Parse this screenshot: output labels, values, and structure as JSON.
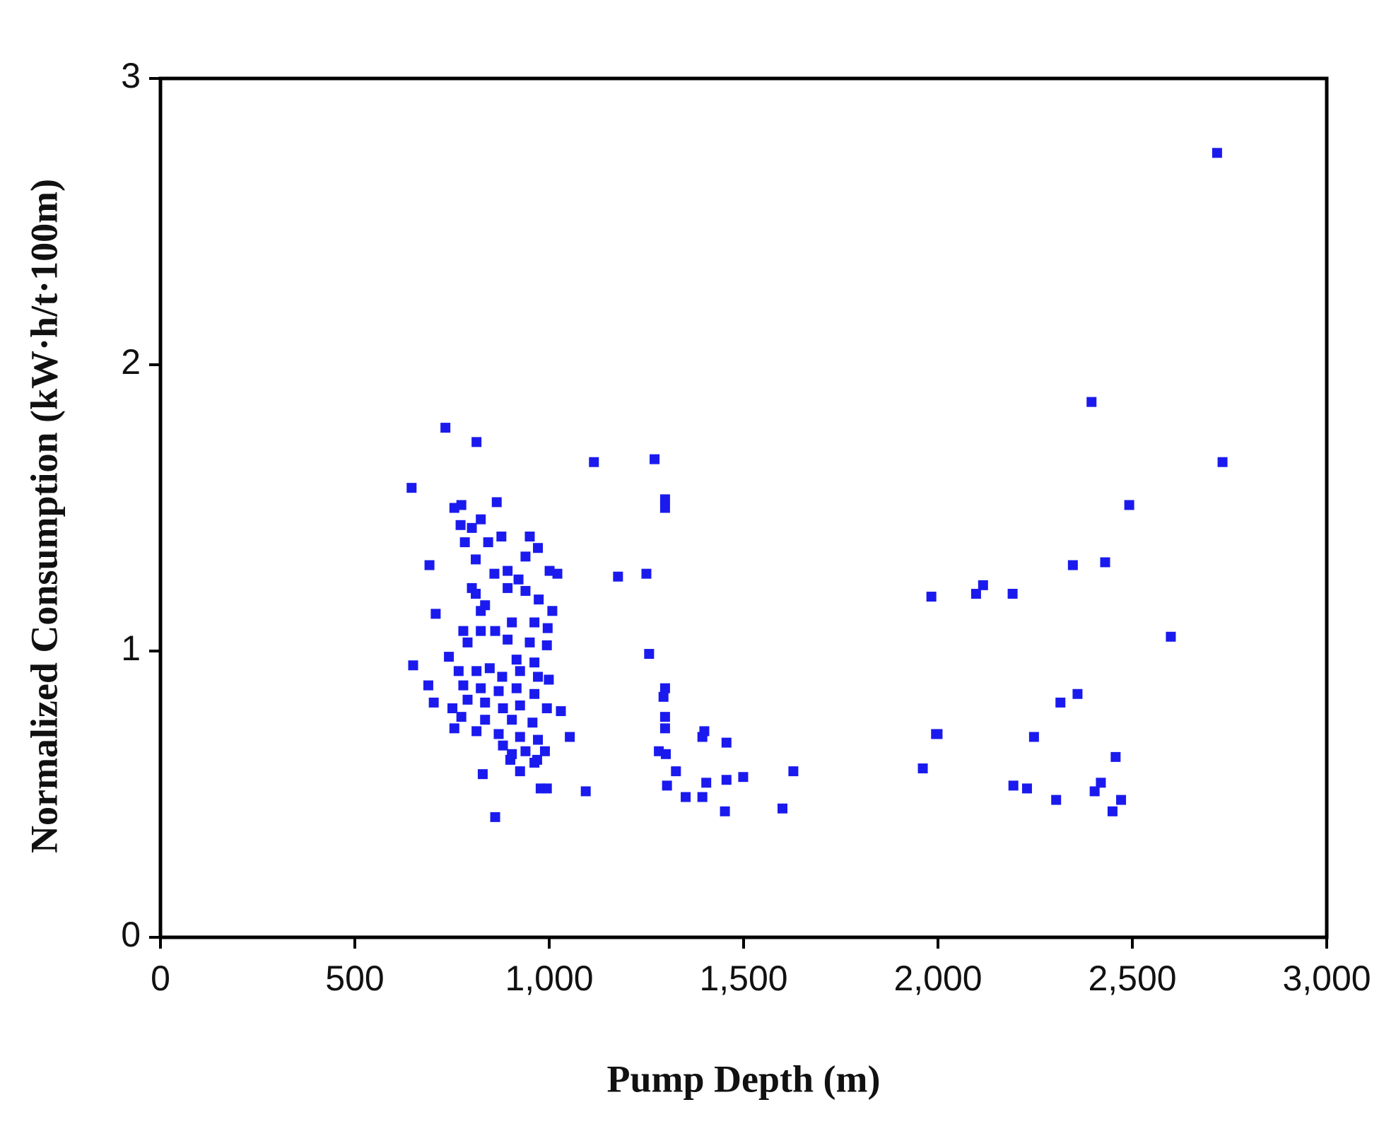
{
  "chart_data": {
    "type": "scatter",
    "x_label": "Pump Depth (m)",
    "y_label": "Normalized Consumption (kW·h/t·100m)",
    "color": "#1a1aee",
    "xlim": [
      0,
      3000
    ],
    "ylim": [
      0,
      3
    ],
    "xticks": [
      0,
      500,
      {
        "value": 1000,
        "label": "1,000"
      },
      {
        "value": 1500,
        "label": "1,500"
      },
      {
        "value": 2000,
        "label": "2,000"
      },
      {
        "value": 2500,
        "label": "2,500"
      },
      {
        "value": 3000,
        "label": "3,000"
      }
    ],
    "yticks": [
      0,
      1,
      2,
      3
    ],
    "grid": false,
    "x": [
      2718,
      2732,
      2395,
      2492,
      2430,
      2347,
      2599,
      2359,
      2315,
      2247,
      2457,
      2194,
      2229,
      2304,
      2403,
      2419,
      2471,
      2449,
      2192,
      2116,
      2098,
      1983,
      1999,
      1995,
      1961,
      1115,
      1271,
      1298,
      1298,
      1177,
      1250,
      1257,
      1298,
      1294,
      1298,
      1298,
      1282,
      1300,
      1399,
      1394,
      1456,
      1326,
      1303,
      1351,
      1404,
      1394,
      1456,
      1499,
      1452,
      1600,
      1628,
      1053,
      1030,
      1094,
      994,
      978,
      646,
      733,
      813,
      692,
      708,
      650,
      742,
      689,
      703,
      756,
      774,
      772,
      824,
      865,
      783,
      801,
      843,
      877,
      811,
      859,
      950,
      971,
      939,
      893,
      921,
      1001,
      1021,
      801,
      811,
      824,
      835,
      893,
      939,
      973,
      1008,
      779,
      824,
      861,
      904,
      962,
      996,
      790,
      893,
      950,
      994,
      916,
      962,
      767,
      813,
      847,
      879,
      925,
      971,
      999,
      779,
      824,
      870,
      916,
      962,
      790,
      835,
      881,
      925,
      994,
      751,
      774,
      835,
      904,
      957,
      756,
      813,
      870,
      925,
      971,
      881,
      904,
      939,
      989,
      900,
      962,
      925,
      829,
      861,
      969
    ],
    "values": [
      2.74,
      1.66,
      1.87,
      1.51,
      1.31,
      1.3,
      1.05,
      0.85,
      0.82,
      0.7,
      0.63,
      0.53,
      0.52,
      0.48,
      0.51,
      0.54,
      0.48,
      0.44,
      1.2,
      1.23,
      1.2,
      1.19,
      0.71,
      0.71,
      0.59,
      1.66,
      1.67,
      1.53,
      1.5,
      1.26,
      1.27,
      0.99,
      0.87,
      0.84,
      0.77,
      0.73,
      0.65,
      0.64,
      0.72,
      0.7,
      0.68,
      0.58,
      0.53,
      0.49,
      0.54,
      0.49,
      0.55,
      0.56,
      0.44,
      0.45,
      0.58,
      0.7,
      0.79,
      0.51,
      0.52,
      0.52,
      1.57,
      1.78,
      1.73,
      1.3,
      1.13,
      0.95,
      0.98,
      0.88,
      0.82,
      1.5,
      1.51,
      1.44,
      1.46,
      1.52,
      1.38,
      1.43,
      1.38,
      1.4,
      1.32,
      1.27,
      1.4,
      1.36,
      1.33,
      1.28,
      1.25,
      1.28,
      1.27,
      1.22,
      1.2,
      1.14,
      1.16,
      1.22,
      1.21,
      1.18,
      1.14,
      1.07,
      1.07,
      1.07,
      1.1,
      1.1,
      1.08,
      1.03,
      1.04,
      1.03,
      1.02,
      0.97,
      0.96,
      0.93,
      0.93,
      0.94,
      0.91,
      0.93,
      0.91,
      0.9,
      0.88,
      0.87,
      0.86,
      0.87,
      0.85,
      0.83,
      0.82,
      0.8,
      0.81,
      0.8,
      0.8,
      0.77,
      0.76,
      0.76,
      0.75,
      0.73,
      0.72,
      0.71,
      0.7,
      0.69,
      0.67,
      0.64,
      0.65,
      0.65,
      0.62,
      0.61,
      0.58,
      0.57,
      0.42,
      0.62
    ]
  }
}
